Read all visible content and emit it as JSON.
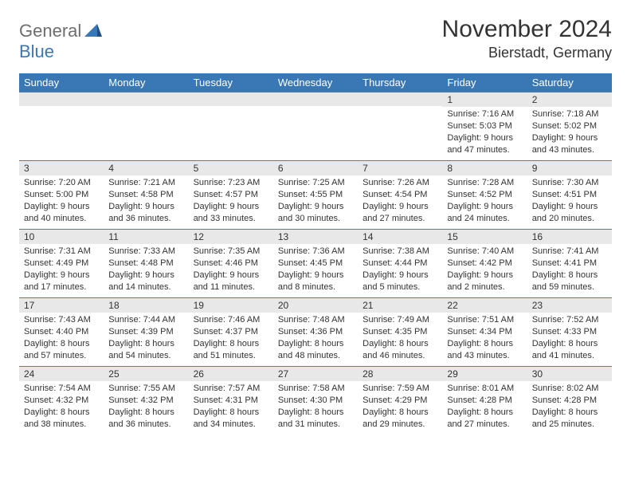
{
  "brand": {
    "part1": "General",
    "part2": "Blue"
  },
  "title": "November 2024",
  "location": "Bierstadt, Germany",
  "header_color": "#3a78b5",
  "daybar_color": "#e8e8e8",
  "daybar_border": "#5a7a9a",
  "text_color": "#333333",
  "fontsize_title": 30,
  "fontsize_location": 18,
  "fontsize_dayheader": 13,
  "fontsize_daynum": 12,
  "fontsize_cell": 11,
  "columns": [
    "Sunday",
    "Monday",
    "Tuesday",
    "Wednesday",
    "Thursday",
    "Friday",
    "Saturday"
  ],
  "weeks": [
    [
      {
        "n": "",
        "sr": "",
        "ss": "",
        "d1": "",
        "d2": ""
      },
      {
        "n": "",
        "sr": "",
        "ss": "",
        "d1": "",
        "d2": ""
      },
      {
        "n": "",
        "sr": "",
        "ss": "",
        "d1": "",
        "d2": ""
      },
      {
        "n": "",
        "sr": "",
        "ss": "",
        "d1": "",
        "d2": ""
      },
      {
        "n": "",
        "sr": "",
        "ss": "",
        "d1": "",
        "d2": ""
      },
      {
        "n": "1",
        "sr": "Sunrise: 7:16 AM",
        "ss": "Sunset: 5:03 PM",
        "d1": "Daylight: 9 hours",
        "d2": "and 47 minutes."
      },
      {
        "n": "2",
        "sr": "Sunrise: 7:18 AM",
        "ss": "Sunset: 5:02 PM",
        "d1": "Daylight: 9 hours",
        "d2": "and 43 minutes."
      }
    ],
    [
      {
        "n": "3",
        "sr": "Sunrise: 7:20 AM",
        "ss": "Sunset: 5:00 PM",
        "d1": "Daylight: 9 hours",
        "d2": "and 40 minutes."
      },
      {
        "n": "4",
        "sr": "Sunrise: 7:21 AM",
        "ss": "Sunset: 4:58 PM",
        "d1": "Daylight: 9 hours",
        "d2": "and 36 minutes."
      },
      {
        "n": "5",
        "sr": "Sunrise: 7:23 AM",
        "ss": "Sunset: 4:57 PM",
        "d1": "Daylight: 9 hours",
        "d2": "and 33 minutes."
      },
      {
        "n": "6",
        "sr": "Sunrise: 7:25 AM",
        "ss": "Sunset: 4:55 PM",
        "d1": "Daylight: 9 hours",
        "d2": "and 30 minutes."
      },
      {
        "n": "7",
        "sr": "Sunrise: 7:26 AM",
        "ss": "Sunset: 4:54 PM",
        "d1": "Daylight: 9 hours",
        "d2": "and 27 minutes."
      },
      {
        "n": "8",
        "sr": "Sunrise: 7:28 AM",
        "ss": "Sunset: 4:52 PM",
        "d1": "Daylight: 9 hours",
        "d2": "and 24 minutes."
      },
      {
        "n": "9",
        "sr": "Sunrise: 7:30 AM",
        "ss": "Sunset: 4:51 PM",
        "d1": "Daylight: 9 hours",
        "d2": "and 20 minutes."
      }
    ],
    [
      {
        "n": "10",
        "sr": "Sunrise: 7:31 AM",
        "ss": "Sunset: 4:49 PM",
        "d1": "Daylight: 9 hours",
        "d2": "and 17 minutes."
      },
      {
        "n": "11",
        "sr": "Sunrise: 7:33 AM",
        "ss": "Sunset: 4:48 PM",
        "d1": "Daylight: 9 hours",
        "d2": "and 14 minutes."
      },
      {
        "n": "12",
        "sr": "Sunrise: 7:35 AM",
        "ss": "Sunset: 4:46 PM",
        "d1": "Daylight: 9 hours",
        "d2": "and 11 minutes."
      },
      {
        "n": "13",
        "sr": "Sunrise: 7:36 AM",
        "ss": "Sunset: 4:45 PM",
        "d1": "Daylight: 9 hours",
        "d2": "and 8 minutes."
      },
      {
        "n": "14",
        "sr": "Sunrise: 7:38 AM",
        "ss": "Sunset: 4:44 PM",
        "d1": "Daylight: 9 hours",
        "d2": "and 5 minutes."
      },
      {
        "n": "15",
        "sr": "Sunrise: 7:40 AM",
        "ss": "Sunset: 4:42 PM",
        "d1": "Daylight: 9 hours",
        "d2": "and 2 minutes."
      },
      {
        "n": "16",
        "sr": "Sunrise: 7:41 AM",
        "ss": "Sunset: 4:41 PM",
        "d1": "Daylight: 8 hours",
        "d2": "and 59 minutes."
      }
    ],
    [
      {
        "n": "17",
        "sr": "Sunrise: 7:43 AM",
        "ss": "Sunset: 4:40 PM",
        "d1": "Daylight: 8 hours",
        "d2": "and 57 minutes."
      },
      {
        "n": "18",
        "sr": "Sunrise: 7:44 AM",
        "ss": "Sunset: 4:39 PM",
        "d1": "Daylight: 8 hours",
        "d2": "and 54 minutes."
      },
      {
        "n": "19",
        "sr": "Sunrise: 7:46 AM",
        "ss": "Sunset: 4:37 PM",
        "d1": "Daylight: 8 hours",
        "d2": "and 51 minutes."
      },
      {
        "n": "20",
        "sr": "Sunrise: 7:48 AM",
        "ss": "Sunset: 4:36 PM",
        "d1": "Daylight: 8 hours",
        "d2": "and 48 minutes."
      },
      {
        "n": "21",
        "sr": "Sunrise: 7:49 AM",
        "ss": "Sunset: 4:35 PM",
        "d1": "Daylight: 8 hours",
        "d2": "and 46 minutes."
      },
      {
        "n": "22",
        "sr": "Sunrise: 7:51 AM",
        "ss": "Sunset: 4:34 PM",
        "d1": "Daylight: 8 hours",
        "d2": "and 43 minutes."
      },
      {
        "n": "23",
        "sr": "Sunrise: 7:52 AM",
        "ss": "Sunset: 4:33 PM",
        "d1": "Daylight: 8 hours",
        "d2": "and 41 minutes."
      }
    ],
    [
      {
        "n": "24",
        "sr": "Sunrise: 7:54 AM",
        "ss": "Sunset: 4:32 PM",
        "d1": "Daylight: 8 hours",
        "d2": "and 38 minutes."
      },
      {
        "n": "25",
        "sr": "Sunrise: 7:55 AM",
        "ss": "Sunset: 4:32 PM",
        "d1": "Daylight: 8 hours",
        "d2": "and 36 minutes."
      },
      {
        "n": "26",
        "sr": "Sunrise: 7:57 AM",
        "ss": "Sunset: 4:31 PM",
        "d1": "Daylight: 8 hours",
        "d2": "and 34 minutes."
      },
      {
        "n": "27",
        "sr": "Sunrise: 7:58 AM",
        "ss": "Sunset: 4:30 PM",
        "d1": "Daylight: 8 hours",
        "d2": "and 31 minutes."
      },
      {
        "n": "28",
        "sr": "Sunrise: 7:59 AM",
        "ss": "Sunset: 4:29 PM",
        "d1": "Daylight: 8 hours",
        "d2": "and 29 minutes."
      },
      {
        "n": "29",
        "sr": "Sunrise: 8:01 AM",
        "ss": "Sunset: 4:28 PM",
        "d1": "Daylight: 8 hours",
        "d2": "and 27 minutes."
      },
      {
        "n": "30",
        "sr": "Sunrise: 8:02 AM",
        "ss": "Sunset: 4:28 PM",
        "d1": "Daylight: 8 hours",
        "d2": "and 25 minutes."
      }
    ]
  ]
}
